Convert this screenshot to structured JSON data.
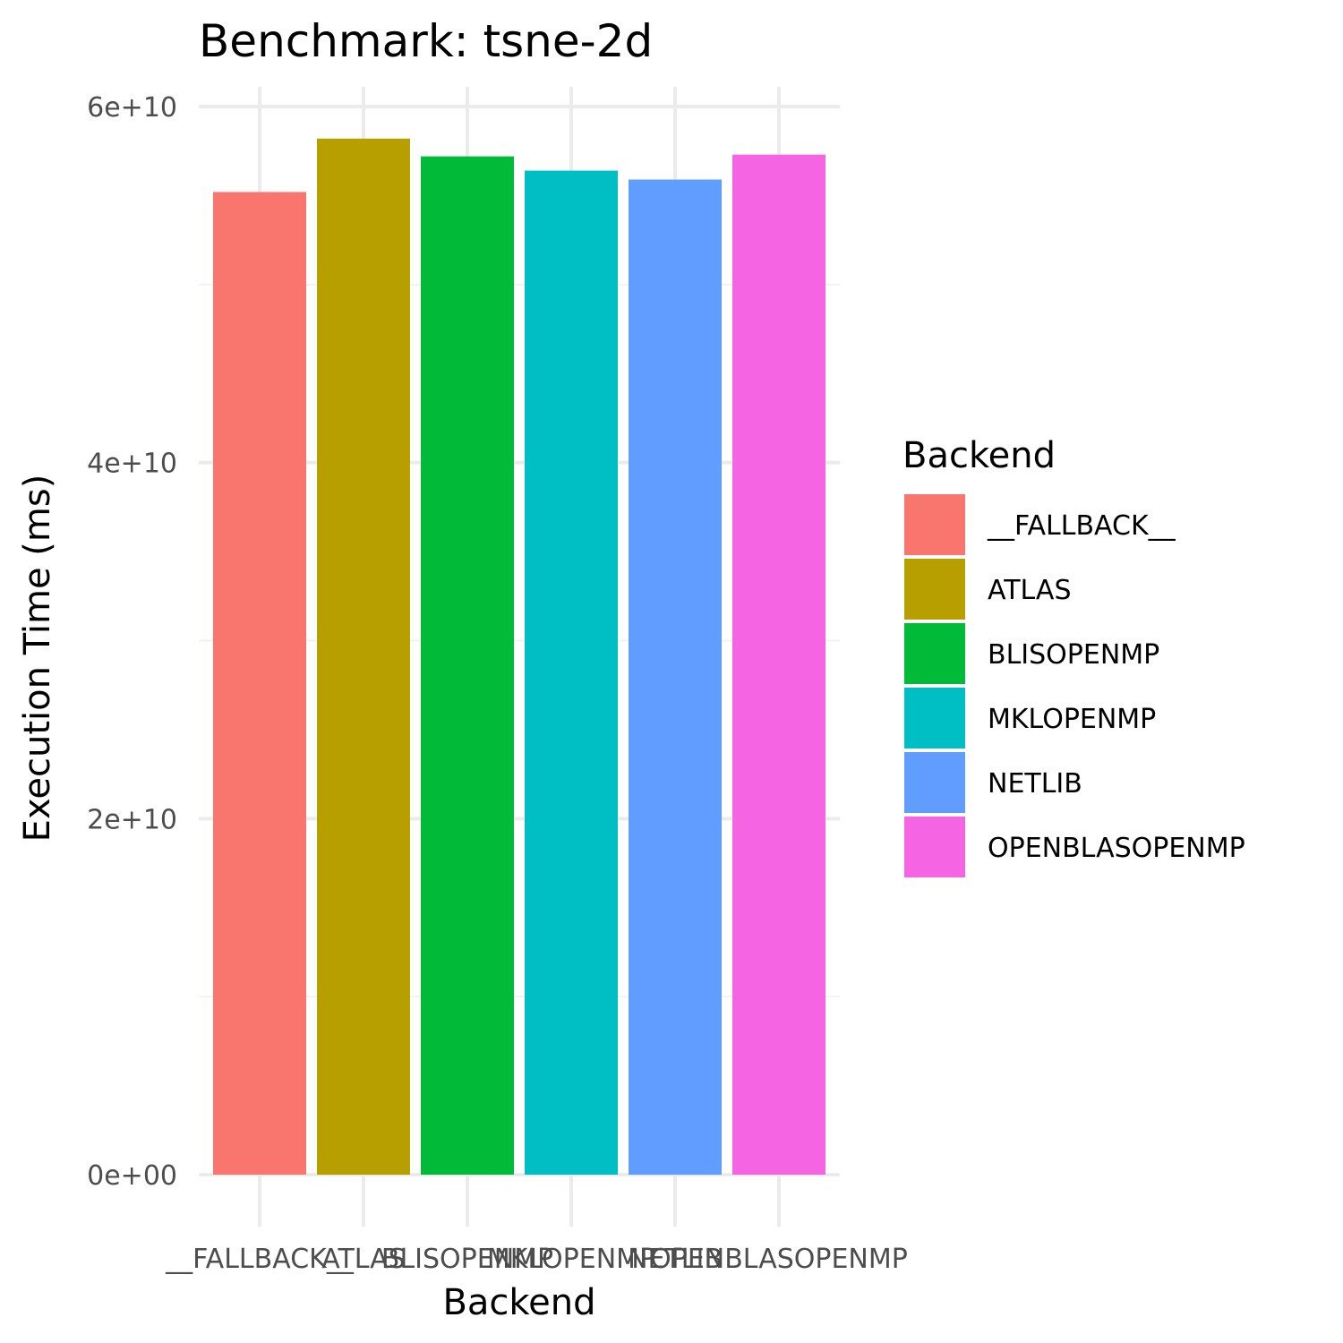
{
  "chart_data": {
    "type": "bar",
    "title": "Benchmark: tsne-2d",
    "xlabel": "Backend",
    "ylabel": "Execution Time (ms)",
    "categories": [
      "__FALLBACK__",
      "ATLAS",
      "BLISOPENMP",
      "MKLOPENMP",
      "NETLIB",
      "OPENBLASOPENMP"
    ],
    "values": [
      55200000000,
      58200000000,
      57200000000,
      56400000000,
      55900000000,
      57300000000
    ],
    "colors": [
      "#F8766D",
      "#B79F00",
      "#00BA38",
      "#00BFC4",
      "#619CFF",
      "#F564E3"
    ],
    "ylim": [
      0,
      60000000000
    ],
    "y_ticks": [
      0,
      20000000000,
      40000000000,
      60000000000
    ],
    "y_tick_labels": [
      "0e+00",
      "2e+10",
      "4e+10",
      "6e+10"
    ],
    "grid": true,
    "legend": {
      "title": "Backend",
      "position": "right",
      "entries": [
        "__FALLBACK__",
        "ATLAS",
        "BLISOPENMP",
        "MKLOPENMP",
        "NETLIB",
        "OPENBLASOPENMP"
      ]
    }
  }
}
